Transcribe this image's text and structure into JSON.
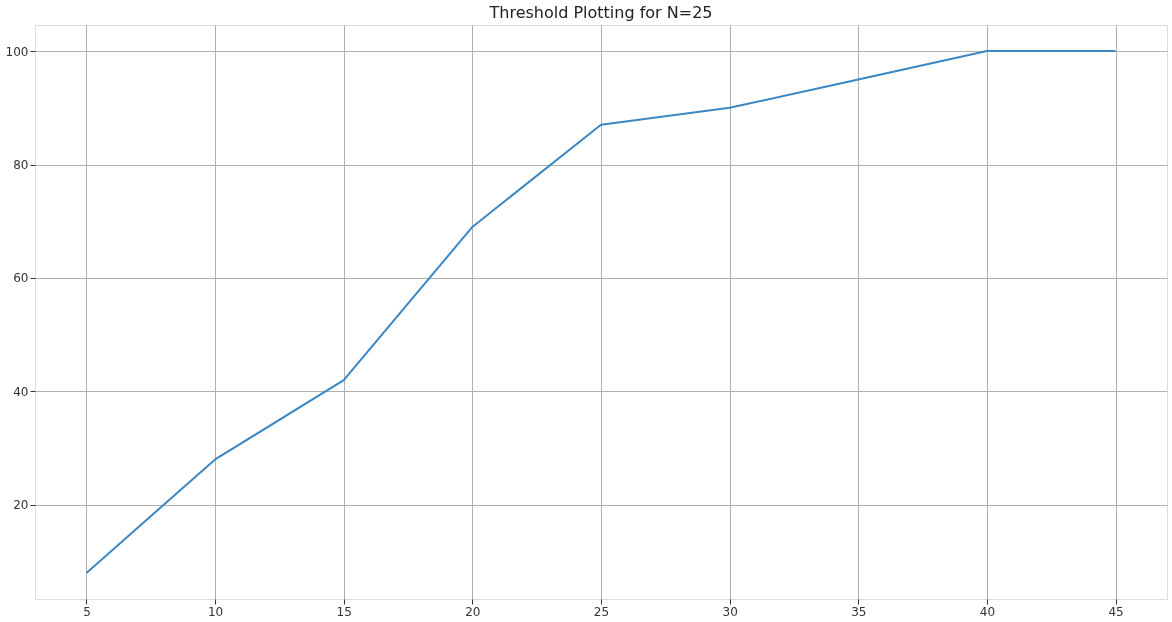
{
  "chart_data": {
    "type": "line",
    "title": "Threshold Plotting for N=25",
    "x": [
      5,
      10,
      15,
      20,
      25,
      30,
      35,
      40,
      45
    ],
    "series": [
      {
        "color": "#3a87c3",
        "values": [
          8,
          28,
          42,
          69,
          87,
          90,
          95,
          100,
          100
        ]
      }
    ],
    "xlim": [
      3,
      47
    ],
    "xticks": [
      5,
      10,
      15,
      20,
      25,
      30,
      35,
      40,
      45
    ],
    "ylim": [
      3.4,
      104.6
    ],
    "yticks": [
      20,
      40,
      60,
      80,
      100
    ],
    "grid": true,
    "legend": false,
    "marker": "none",
    "line_style": "solid"
  }
}
